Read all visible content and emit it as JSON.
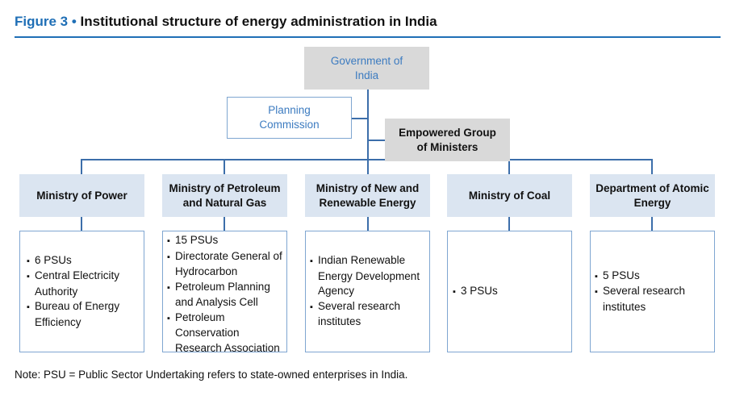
{
  "figure": {
    "label": "Figure 3",
    "separator": " • ",
    "title": "Institutional structure of energy administration in India"
  },
  "top": {
    "government": "Government of India",
    "planning": "Planning Commission",
    "egom": "Empowered Group of Ministers"
  },
  "ministries": [
    {
      "name": "Ministry of Power",
      "items": [
        "6 PSUs",
        "Central Electricity Authority",
        "Bureau of Energy Efficiency"
      ]
    },
    {
      "name": "Ministry of Petroleum and Natural Gas",
      "items": [
        "15 PSUs",
        "Directorate General of Hydrocarbon",
        "Petroleum Planning and Analysis Cell",
        "Petroleum Conservation Research Association"
      ]
    },
    {
      "name": "Ministry of New and Renewable Energy",
      "items": [
        "Indian Renewable Energy Development Agency",
        "Several research institutes"
      ]
    },
    {
      "name": "Ministry of Coal",
      "items": [
        "3 PSUs"
      ]
    },
    {
      "name": "Department of Atomic Energy",
      "items": [
        "5 PSUs",
        "Several research institutes"
      ]
    }
  ],
  "note": "Note: PSU = Public Sector Undertaking refers to state-owned enterprises in India.",
  "colors": {
    "accent": "#1f6fb6",
    "connector": "#3c6eaa",
    "ministry_fill": "#dbe5f1",
    "top_fill": "#d9d9d9",
    "outline": "#7fa6d1"
  }
}
